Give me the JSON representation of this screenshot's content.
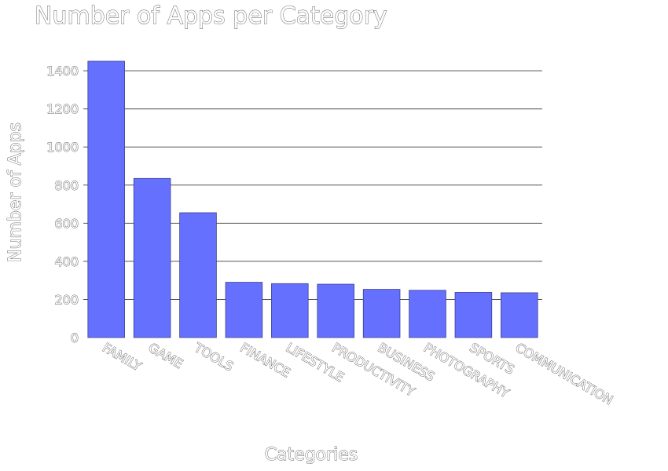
{
  "chart_data": {
    "type": "bar",
    "title": "Number of Apps per Category",
    "xlabel": "Categories",
    "ylabel": "Number of Apps",
    "categories": [
      "FAMILY",
      "GAME",
      "TOOLS",
      "FINANCE",
      "LIFESTYLE",
      "PRODUCTIVITY",
      "BUSINESS",
      "PHOTOGRAPHY",
      "SPORTS",
      "COMMUNICATION"
    ],
    "values": [
      1450,
      835,
      655,
      290,
      283,
      280,
      253,
      248,
      237,
      235
    ],
    "ylim": [
      0,
      1450
    ],
    "yticks": [
      0,
      200,
      400,
      600,
      800,
      1000,
      1200,
      1400
    ],
    "ytick_labels": [
      "0",
      "200",
      "400",
      "600",
      "800",
      "1000",
      "1200",
      "1400"
    ],
    "grid": true,
    "colors": {
      "bar": "#6570ff"
    }
  }
}
